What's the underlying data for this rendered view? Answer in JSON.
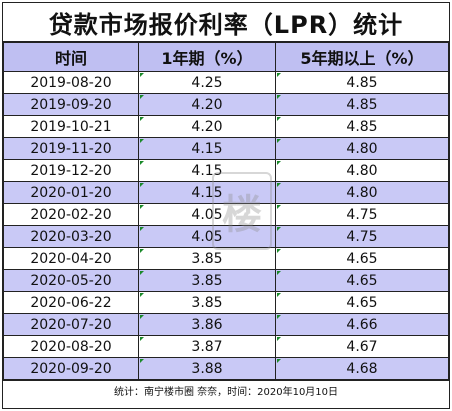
{
  "title": "贷款市场报价利率（LPR）统计",
  "headers": [
    "时间",
    "1年期（%）",
    "5年期以上（%）"
  ],
  "rows": [
    {
      "date": "2019-08-20",
      "one_year": "4.25",
      "five_year": "4.85"
    },
    {
      "date": "2019-09-20",
      "one_year": "4.20",
      "five_year": "4.85"
    },
    {
      "date": "2019-10-21",
      "one_year": "4.20",
      "five_year": "4.85"
    },
    {
      "date": "2019-11-20",
      "one_year": "4.15",
      "five_year": "4.80"
    },
    {
      "date": "2019-12-20",
      "one_year": "4.15",
      "five_year": "4.80"
    },
    {
      "date": "2020-01-20",
      "one_year": "4.15",
      "five_year": "4.80"
    },
    {
      "date": "2020-02-20",
      "one_year": "4.05",
      "five_year": "4.75"
    },
    {
      "date": "2020-03-20",
      "one_year": "4.05",
      "five_year": "4.75"
    },
    {
      "date": "2020-04-20",
      "one_year": "3.85",
      "five_year": "4.65"
    },
    {
      "date": "2020-05-20",
      "one_year": "3.85",
      "five_year": "4.65"
    },
    {
      "date": "2020-06-22",
      "one_year": "3.85",
      "five_year": "4.65"
    },
    {
      "date": "2020-07-20",
      "one_year": "3.86",
      "five_year": "4.66"
    },
    {
      "date": "2020-08-20",
      "one_year": "3.87",
      "five_year": "4.67"
    },
    {
      "date": "2020-09-20",
      "one_year": "3.88",
      "five_year": "4.68"
    }
  ],
  "footer": "统计：南宁楼市圈 奈奈，时间：2020年10月10日",
  "colors": {
    "header_bg": "#bfbff2",
    "shade_bg": "#c9c9f6",
    "border": "#222222"
  }
}
